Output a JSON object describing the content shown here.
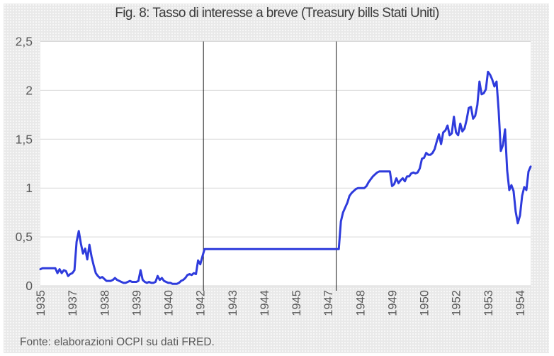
{
  "figure": {
    "title": "Fig. 8: Tasso di interesse a breve (Treasury bills Stati Uniti)",
    "source": "Fonte: elaborazioni OCPI su dati FRED."
  },
  "colors": {
    "line": "#2e3bdc",
    "grid": "#d9d9d9",
    "axis_text": "#595959",
    "title_text": "#3b3b3b",
    "background": "#e9e9e9",
    "plot_background": "#ffffff",
    "reference_line": "#1a1a1a"
  },
  "chart_data": {
    "type": "line",
    "title": "Fig. 8: Tasso di interesse a breve (Treasury bills Stati Uniti)",
    "source": "Fonte: elaborazioni OCPI su dati FRED.",
    "frequency": "monthly",
    "x_start": "1935-10",
    "x_end": "1954-12",
    "x_tick_every": 15,
    "x_tick_labels": [
      "1935",
      "1937",
      "1938",
      "1939",
      "1940",
      "1942",
      "1943",
      "1944",
      "1945",
      "1947",
      "1948",
      "1949",
      "1950",
      "1952",
      "1953",
      "1954"
    ],
    "y_tick_labels": [
      "0",
      "0,5",
      "1",
      "1,5",
      "2",
      "2,5"
    ],
    "ylim": [
      0,
      2.5
    ],
    "grid": "horizontal",
    "legend": "none",
    "reference_lines": {
      "month_indices": [
        76.5,
        138.8
      ]
    },
    "series": [
      {
        "name": "Tasso Treasury bills Stati Uniti (%)",
        "values": [
          0.17,
          0.18,
          0.18,
          0.18,
          0.18,
          0.18,
          0.18,
          0.18,
          0.13,
          0.17,
          0.13,
          0.16,
          0.15,
          0.1,
          0.12,
          0.13,
          0.16,
          0.45,
          0.56,
          0.43,
          0.33,
          0.38,
          0.27,
          0.42,
          0.3,
          0.21,
          0.13,
          0.1,
          0.08,
          0.09,
          0.07,
          0.05,
          0.05,
          0.05,
          0.06,
          0.08,
          0.06,
          0.05,
          0.04,
          0.03,
          0.03,
          0.04,
          0.05,
          0.04,
          0.04,
          0.04,
          0.05,
          0.16,
          0.06,
          0.04,
          0.03,
          0.04,
          0.03,
          0.03,
          0.04,
          0.1,
          0.06,
          0.08,
          0.05,
          0.04,
          0.03,
          0.03,
          0.02,
          0.02,
          0.02,
          0.03,
          0.05,
          0.06,
          0.08,
          0.11,
          0.12,
          0.11,
          0.13,
          0.12,
          0.26,
          0.22,
          0.3,
          0.375,
          0.375,
          0.375,
          0.375,
          0.375,
          0.375,
          0.375,
          0.375,
          0.375,
          0.375,
          0.375,
          0.375,
          0.375,
          0.375,
          0.375,
          0.375,
          0.375,
          0.375,
          0.375,
          0.375,
          0.375,
          0.375,
          0.375,
          0.375,
          0.375,
          0.375,
          0.375,
          0.375,
          0.375,
          0.375,
          0.375,
          0.375,
          0.375,
          0.375,
          0.375,
          0.375,
          0.375,
          0.375,
          0.375,
          0.375,
          0.375,
          0.375,
          0.375,
          0.375,
          0.375,
          0.375,
          0.375,
          0.375,
          0.375,
          0.375,
          0.375,
          0.375,
          0.375,
          0.375,
          0.375,
          0.375,
          0.375,
          0.375,
          0.375,
          0.375,
          0.375,
          0.375,
          0.375,
          0.375,
          0.66,
          0.75,
          0.8,
          0.85,
          0.92,
          0.95,
          0.97,
          0.99,
          1.0,
          1.0,
          1.0,
          1.0,
          1.02,
          1.06,
          1.09,
          1.12,
          1.14,
          1.16,
          1.17,
          1.17,
          1.17,
          1.17,
          1.17,
          1.17,
          1.02,
          1.04,
          1.1,
          1.05,
          1.08,
          1.1,
          1.07,
          1.12,
          1.12,
          1.15,
          1.16,
          1.15,
          1.16,
          1.2,
          1.3,
          1.31,
          1.36,
          1.34,
          1.34,
          1.36,
          1.4,
          1.48,
          1.55,
          1.45,
          1.57,
          1.59,
          1.64,
          1.54,
          1.56,
          1.73,
          1.57,
          1.54,
          1.66,
          1.58,
          1.61,
          1.7,
          1.82,
          1.83,
          1.71,
          1.74,
          1.85,
          2.09,
          1.96,
          1.97,
          2.01,
          2.19,
          2.16,
          2.11,
          2.04,
          2.09,
          1.79,
          1.38,
          1.44,
          1.6,
          1.18,
          0.98,
          1.03,
          0.97,
          0.76,
          0.64,
          0.72,
          0.92,
          1.01,
          0.98,
          1.17,
          1.22
        ]
      }
    ]
  }
}
